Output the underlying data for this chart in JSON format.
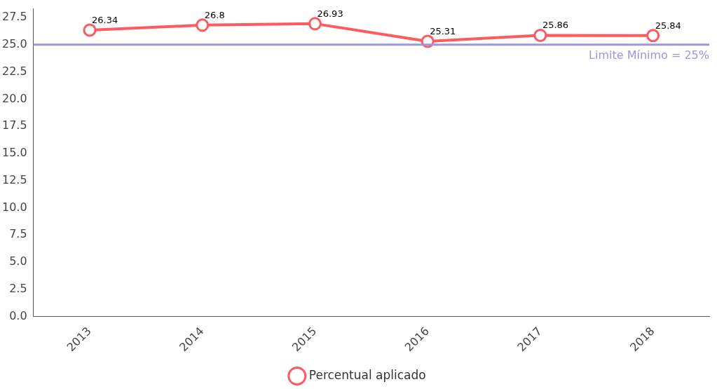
{
  "chart_data": {
    "type": "line",
    "categories": [
      "2013",
      "2014",
      "2015",
      "2016",
      "2017",
      "2018"
    ],
    "series": [
      {
        "name": "Percentual aplicado",
        "color": "#ff5a5f",
        "values": [
          26.34,
          26.8,
          26.93,
          25.31,
          25.86,
          25.84
        ]
      }
    ],
    "ylim": [
      0,
      28.3
    ],
    "yticks": [
      {
        "value": 0,
        "label": "0.0"
      },
      {
        "value": 2.5,
        "label": "2.5"
      },
      {
        "value": 5,
        "label": "5.0"
      },
      {
        "value": 7.5,
        "label": "7.5"
      },
      {
        "value": 10,
        "label": "10.0"
      },
      {
        "value": 12.5,
        "label": "12.5"
      },
      {
        "value": 15,
        "label": "15.0"
      },
      {
        "value": 17.5,
        "label": "17.5"
      },
      {
        "value": 20,
        "label": "20.0"
      },
      {
        "value": 22.5,
        "label": "22.5"
      },
      {
        "value": 25,
        "label": "25.0"
      },
      {
        "value": 27.5,
        "label": "27.5"
      }
    ],
    "ref_lines": [
      {
        "axis": "y",
        "value": 25,
        "label": "Limite Mínimo = 25%",
        "color": "#9999dd"
      }
    ],
    "data_labels": true,
    "grid": false,
    "legend": "bottom",
    "marker": "circle",
    "line_style": "solid"
  }
}
